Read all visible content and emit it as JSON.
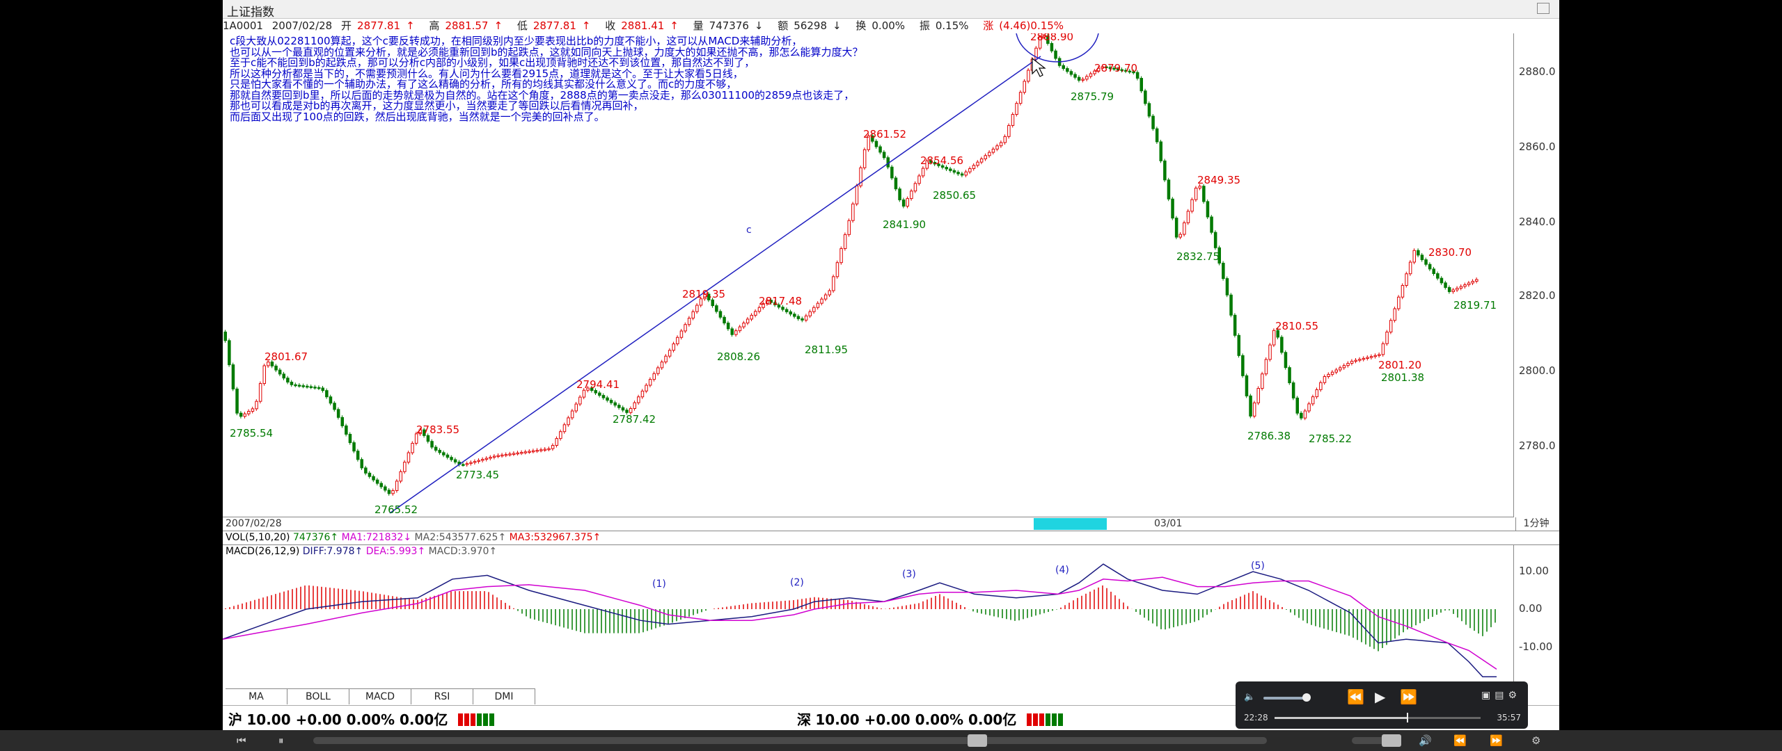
{
  "window": {
    "title": "上证指数"
  },
  "quote": {
    "code": "1A0001",
    "date": "2007/02/28",
    "open_label": "开",
    "open": "2877.81",
    "high_label": "高",
    "high": "2881.57",
    "low_label": "低",
    "low": "2877.81",
    "close_label": "收",
    "close": "2881.41",
    "volume_label": "量",
    "volume": "747376",
    "amount_label": "额",
    "amount": "56298",
    "turnover_label": "换",
    "turnover": "0.00%",
    "amplitude_label": "振",
    "amplitude": "0.15%",
    "change_label": "涨",
    "change": "(4.46)0.15%"
  },
  "annotation": {
    "lines": [
      "c段大致从02281100算起，这个c要反转成功，在相同级别内至少要表现出比b的力度不能小，这可以从MACD来辅助分析，",
      "也可以从一个最直观的位置来分析，就是必须能重新回到b的起跌点，这就如同向天上抛球，力度大的如果还抛不高，那怎么能算力度大？",
      "至于c能不能回到b的起跌点，那可以分析c内部的小级别，如果c出现顶背驰时还达不到该位置，那自然达不到了，",
      "所以这种分析都是当下的，不需要预测什么。有人问为什么要看2915点，道理就是这个。至于让大家看5日线，",
      "只是怕大家看不懂的一个辅助办法，有了这么精确的分析，所有的均线其实都没什么意义了。而c的力度不够，",
      "那就自然要回到b里，所以后面的走势就是极为自然的。站在这个角度，2888点的第一卖点没走，那么03011100的2859点也该走了，",
      "那也可以看成是对b的再次离开，这力度显然更小，当然要走了等回跌以后看情况再回补，",
      "而后面又出现了100点的回跌，然后出现底背驰，当然就是一个完美的回补点了。"
    ],
    "wave_label": "c"
  },
  "price_axis": [
    "2880.0",
    "2860.0",
    "2840.0",
    "2820.0",
    "2800.0",
    "2780.0"
  ],
  "price_labels": {
    "highs": [
      "2801.67",
      "2783.55",
      "2794.41",
      "2819.35",
      "2817.48",
      "2861.52",
      "2854.56",
      "2888.90",
      "2879.70",
      "2849.35",
      "2810.55",
      "2801.20",
      "2830.70"
    ],
    "lows": [
      "2785.54",
      "2765.52",
      "2773.45",
      "2787.42",
      "2808.26",
      "2811.95",
      "2841.90",
      "2850.65",
      "2875.79",
      "2832.75",
      "2786.38",
      "2785.22",
      "2801.38",
      "2819.71"
    ]
  },
  "timebar": {
    "start": "2007/02/28",
    "mid": "03/01",
    "period": "1分钟"
  },
  "volume": {
    "title": "VOL(5,10,20)",
    "value": "747376",
    "ma1": "MA1:721832",
    "ma2": "MA2:543577.625",
    "ma3": "MA3:532967.375"
  },
  "macd": {
    "title": "MACD(26,12,9)",
    "diff": "DIFF:7.978",
    "dea": "DEA:5.993",
    "macd": "MACD:3.970",
    "axis": [
      "10.00",
      "0.00",
      "-10.00"
    ],
    "markers": [
      "(1)",
      "(2)",
      "(3)",
      "(4)",
      "(5)"
    ]
  },
  "tabs": [
    "MA",
    "BOLL",
    "MACD",
    "RSI",
    "DMI"
  ],
  "status": {
    "sh_label": "沪",
    "sh_text": "10.00 +0.00 0.00% 0.00亿",
    "sz_label": "深",
    "sz_text": "10.00 +0.00 0.00% 0.00亿"
  },
  "player": {
    "elapsed": "22:28",
    "total": "35:57",
    "progress": 0.625,
    "volume": 0.85
  },
  "colors": {
    "up": "#e00000",
    "down": "#007a00",
    "line": "#1a1aa0",
    "diff": "#1a1a80",
    "dea": "#d000d0",
    "accent": "#1fd4e0"
  }
}
